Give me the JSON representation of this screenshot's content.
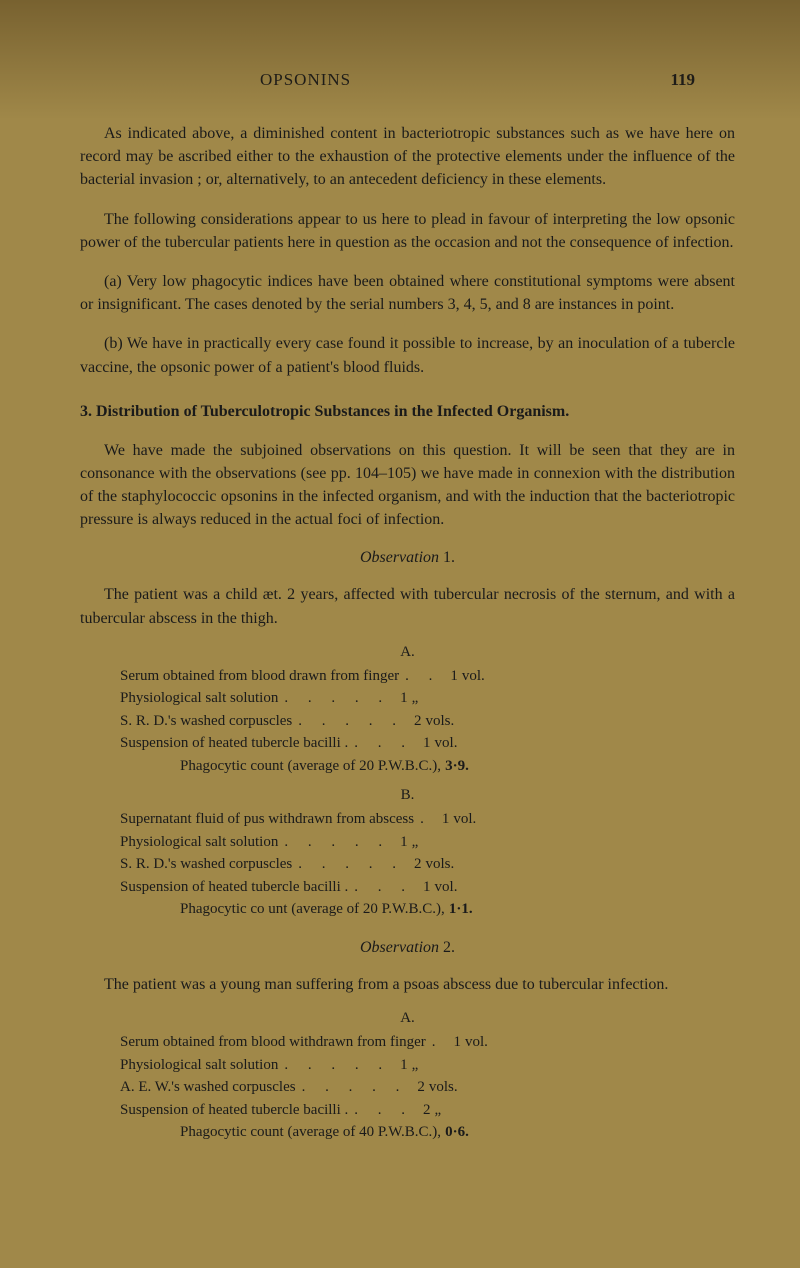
{
  "runningHead": "OPSONINS",
  "pageNumber": "119",
  "paras": [
    "As indicated above, a diminished content in bacteriotropic substances such as we have here on record may be ascribed either to the exhaustion of the protective elements under the influence of the bacterial invasion ; or, alternatively, to an antecedent deficiency in these elements.",
    "The following considerations appear to us here to plead in favour of interpreting the low opsonic power of the tubercular patients here in question as the occasion and not the consequence of infection.",
    "(a) Very low phagocytic indices have been obtained where constitutional symptoms were absent or insignificant. The cases denoted by the serial numbers 3, 4, 5, and 8 are instances in point.",
    "(b) We have in practically every case found it possible to increase, by an inoculation of a tubercle vaccine, the opsonic power of a patient's blood fluids."
  ],
  "sectionHead": "3.   Distribution of Tuberculotropic Substances in the Infected Organism.",
  "paras2": [
    "We have made the subjoined observations on this question. It will be seen that they are in consonance with the observations (see pp. 104–105) we have made in connexion with the distribution of the staphylococcic opsonins in the infected organism, and with the induction that the bacteriotropic pressure is always reduced in the actual foci of infection."
  ],
  "obs1": {
    "head": "Observation",
    "num": "1.",
    "intro": "The patient was a child æt. 2 years, affected with tubercular necrosis of the sternum, and with a tubercular abscess in the thigh.",
    "A": {
      "head": "A.",
      "rows": [
        {
          "label": "Serum obtained from blood drawn from finger",
          "dots": ".    .",
          "val": "1",
          "unit": "vol."
        },
        {
          "label": "Physiological salt solution",
          "dots": ".    .    .    .    .",
          "val": "1",
          "unit": "„"
        },
        {
          "label": "S. R. D.'s washed corpuscles",
          "dots": ".    .    .    .    .",
          "val": "2",
          "unit": "vols."
        },
        {
          "label": "Suspension of heated tubercle bacilli .",
          "dots": ".    .    .",
          "val": "1",
          "unit": "vol."
        }
      ],
      "phago": "Phagocytic count (average of 20 P.W.B.C.),",
      "phagoVal": "3·9."
    },
    "B": {
      "head": "B.",
      "rows": [
        {
          "label": "Supernatant fluid of pus withdrawn from abscess",
          "dots": ".",
          "val": "1",
          "unit": "vol."
        },
        {
          "label": "Physiological salt solution",
          "dots": ".    .    .    .    .",
          "val": "1",
          "unit": "„"
        },
        {
          "label": "S. R. D.'s washed corpuscles",
          "dots": ".    .    .    .    .",
          "val": "2",
          "unit": "vols."
        },
        {
          "label": "Suspension of heated tubercle bacilli .",
          "dots": ".    .    .",
          "val": "1",
          "unit": "vol."
        }
      ],
      "phago": "Phagocytic co unt (average of 20 P.W.B.C.),",
      "phagoVal": "1·1."
    }
  },
  "obs2": {
    "head": "Observation",
    "num": "2.",
    "intro": "The patient was a young man suffering from a psoas abscess due to tubercular infection.",
    "A": {
      "head": "A.",
      "rows": [
        {
          "label": "Serum obtained from blood withdrawn from finger",
          "dots": ".",
          "val": "1",
          "unit": "vol."
        },
        {
          "label": "Physiological salt solution",
          "dots": ".    .    .    .    .",
          "val": "1",
          "unit": "„"
        },
        {
          "label": "A. E. W.'s washed corpuscles",
          "dots": ".    .    .    .    .",
          "val": "2",
          "unit": "vols."
        },
        {
          "label": "Suspension of heated tubercle bacilli .",
          "dots": ".    .    .",
          "val": "2",
          "unit": "„"
        }
      ],
      "phago": "Phagocytic count (average of 40 P.W.B.C.),",
      "phagoVal": "0·6."
    }
  }
}
